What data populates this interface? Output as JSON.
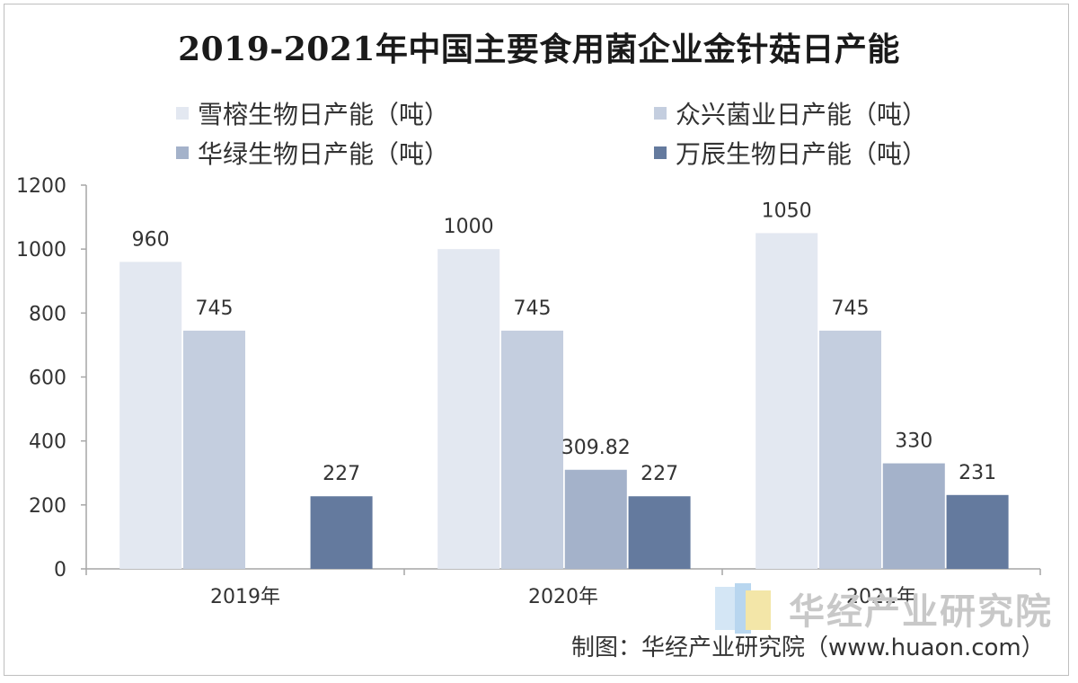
{
  "chart_data": {
    "type": "bar",
    "title": "2019-2021年中国主要食用菌企业金针菇日产能",
    "categories": [
      "2019年",
      "2020年",
      "2021年"
    ],
    "series": [
      {
        "name": "雪榕生物日产能（吨）",
        "color": "#e3e8f1",
        "values": [
          960,
          1000,
          1050
        ],
        "labels": [
          "960",
          "1000",
          "1050"
        ]
      },
      {
        "name": "众兴菌业日产能（吨）",
        "color": "#c4cedf",
        "values": [
          745,
          745,
          745
        ],
        "labels": [
          "745",
          "745",
          "745"
        ]
      },
      {
        "name": "华绿生物日产能（吨）",
        "color": "#a4b2ca",
        "values": [
          null,
          309.82,
          330
        ],
        "labels": [
          null,
          "309.82",
          "330"
        ]
      },
      {
        "name": "万辰生物日产能（吨）",
        "color": "#647a9e",
        "values": [
          227,
          227,
          231
        ],
        "labels": [
          "227",
          "227",
          "231"
        ]
      }
    ],
    "ylim": [
      0,
      1200
    ],
    "yticks": [
      0,
      200,
      400,
      600,
      800,
      1000,
      1200
    ],
    "xlabel": "",
    "ylabel": "",
    "grid": false,
    "legend_position": "top"
  },
  "watermark": {
    "text": "华经产业研究院"
  },
  "source": "制图：华经产业研究院（www.huaon.com）"
}
